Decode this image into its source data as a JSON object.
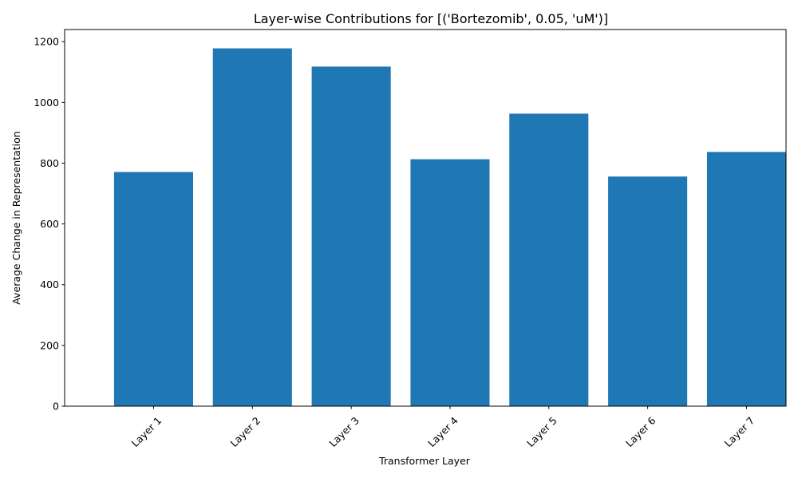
{
  "chart_data": {
    "type": "bar",
    "title": "Layer-wise Contributions for [('Bortezomib', 0.05, 'uM')]",
    "xlabel": "Transformer Layer",
    "ylabel": "Average Change in Representation",
    "categories": [
      "Layer 1",
      "Layer 2",
      "Layer 3",
      "Layer 4",
      "Layer 5",
      "Layer 6",
      "Layer 7"
    ],
    "values": [
      771,
      1178,
      1118,
      813,
      963,
      756,
      837
    ],
    "ylim": [
      0,
      1240
    ],
    "yticks": [
      0,
      200,
      400,
      600,
      800,
      1000,
      1200
    ],
    "xtick_rotation": 45,
    "grid": false,
    "legend": "none",
    "bar_color": "#1f77b4"
  }
}
